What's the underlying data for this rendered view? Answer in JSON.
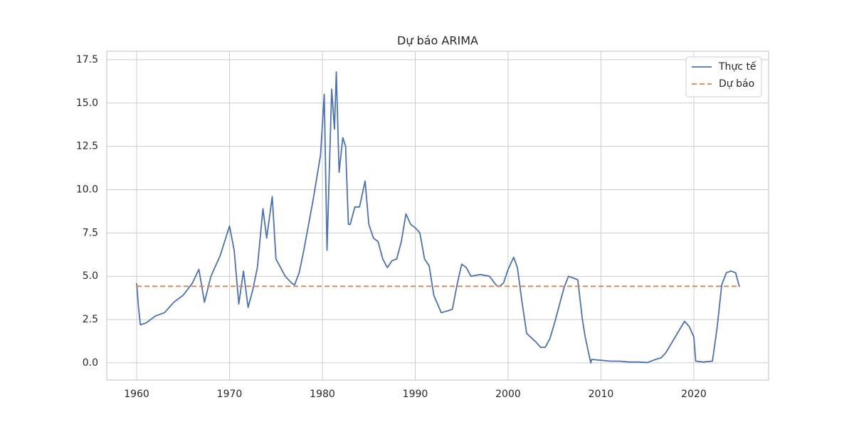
{
  "chart_data": {
    "type": "line",
    "title": "Dự báo ARIMA",
    "xlim": [
      1956.78,
      2028.05
    ],
    "xticks": [
      1960,
      1970,
      1980,
      1990,
      2000,
      2010,
      2020
    ],
    "ylim": [
      -0.99,
      17.99
    ],
    "yticks": [
      {
        "value": 0,
        "label": "0.0"
      },
      2.5,
      {
        "value": 5,
        "label": "5.0"
      },
      7.5,
      {
        "value": 10,
        "label": "10.0"
      },
      12.5,
      {
        "value": 15,
        "label": "15.0"
      },
      17.5
    ],
    "grid": true,
    "legend": "upper-right",
    "series": [
      {
        "name": "Thực tế",
        "color": "#4c72b0",
        "dash": false,
        "x": [
          1960,
          1960.2,
          1960.4,
          1961,
          1962,
          1963,
          1964,
          1965,
          1966,
          1966.7,
          1967.3,
          1968,
          1969,
          1970,
          1970.5,
          1971,
          1971.5,
          1972,
          1972.5,
          1973,
          1973.6,
          1974,
          1974.6,
          1975,
          1975.5,
          1976,
          1976.7,
          1977,
          1977.5,
          1978,
          1979,
          1979.8,
          1980.2,
          1980.5,
          1981,
          1981.3,
          1981.5,
          1981.8,
          1982.2,
          1982.5,
          1982.8,
          1983,
          1983.5,
          1984,
          1984.6,
          1985,
          1985.5,
          1986,
          1986.5,
          1987,
          1987.5,
          1988,
          1988.5,
          1989,
          1989.5,
          1990,
          1990.5,
          1991,
          1991.5,
          1992,
          1992.8,
          1993.5,
          1994,
          1994.5,
          1995,
          1995.5,
          1996,
          1997,
          1998,
          1998.7,
          1999,
          1999.5,
          2000,
          2000.6,
          2001,
          2001.5,
          2002,
          2003,
          2003.5,
          2004,
          2004.5,
          2005,
          2006,
          2006.5,
          2007,
          2007.5,
          2008,
          2008.3,
          2008.9,
          2009,
          2010,
          2011,
          2012,
          2013,
          2014,
          2015,
          2015.9,
          2016.5,
          2017,
          2018,
          2019,
          2019.5,
          2020,
          2020.2,
          2021,
          2022,
          2022.5,
          2023,
          2023.5,
          2024,
          2024.5,
          2024.9
        ],
        "values": [
          4.6,
          3.2,
          2.2,
          2.3,
          2.7,
          2.9,
          3.5,
          3.9,
          4.6,
          5.4,
          3.5,
          5.0,
          6.2,
          7.9,
          6.5,
          3.4,
          5.3,
          3.2,
          4.2,
          5.5,
          8.9,
          7.2,
          9.6,
          6.0,
          5.5,
          5.0,
          4.6,
          4.5,
          5.2,
          6.5,
          9.4,
          12.0,
          15.5,
          6.5,
          15.8,
          13.5,
          16.8,
          11.0,
          13.0,
          12.5,
          8.0,
          8.0,
          9.0,
          9.0,
          10.5,
          8.0,
          7.2,
          7.0,
          6.0,
          5.5,
          5.9,
          6.0,
          7.0,
          8.6,
          8.0,
          7.8,
          7.5,
          6.0,
          5.6,
          3.9,
          2.9,
          3.0,
          3.1,
          4.5,
          5.7,
          5.5,
          5.0,
          5.1,
          5.0,
          4.5,
          4.4,
          4.6,
          5.4,
          6.1,
          5.5,
          3.5,
          1.7,
          1.2,
          0.9,
          0.9,
          1.4,
          2.3,
          4.3,
          5.0,
          4.9,
          4.8,
          2.5,
          1.5,
          0.0,
          0.2,
          0.15,
          0.1,
          0.1,
          0.05,
          0.05,
          0.02,
          0.2,
          0.3,
          0.6,
          1.5,
          2.4,
          2.1,
          1.5,
          0.1,
          0.05,
          0.1,
          2.0,
          4.5,
          5.2,
          5.3,
          5.2,
          4.4
        ]
      },
      {
        "name": "Dự báo",
        "color": "#dd8452",
        "dash": true,
        "x": [
          1960,
          2025
        ],
        "values": [
          4.42,
          4.42
        ]
      }
    ]
  }
}
